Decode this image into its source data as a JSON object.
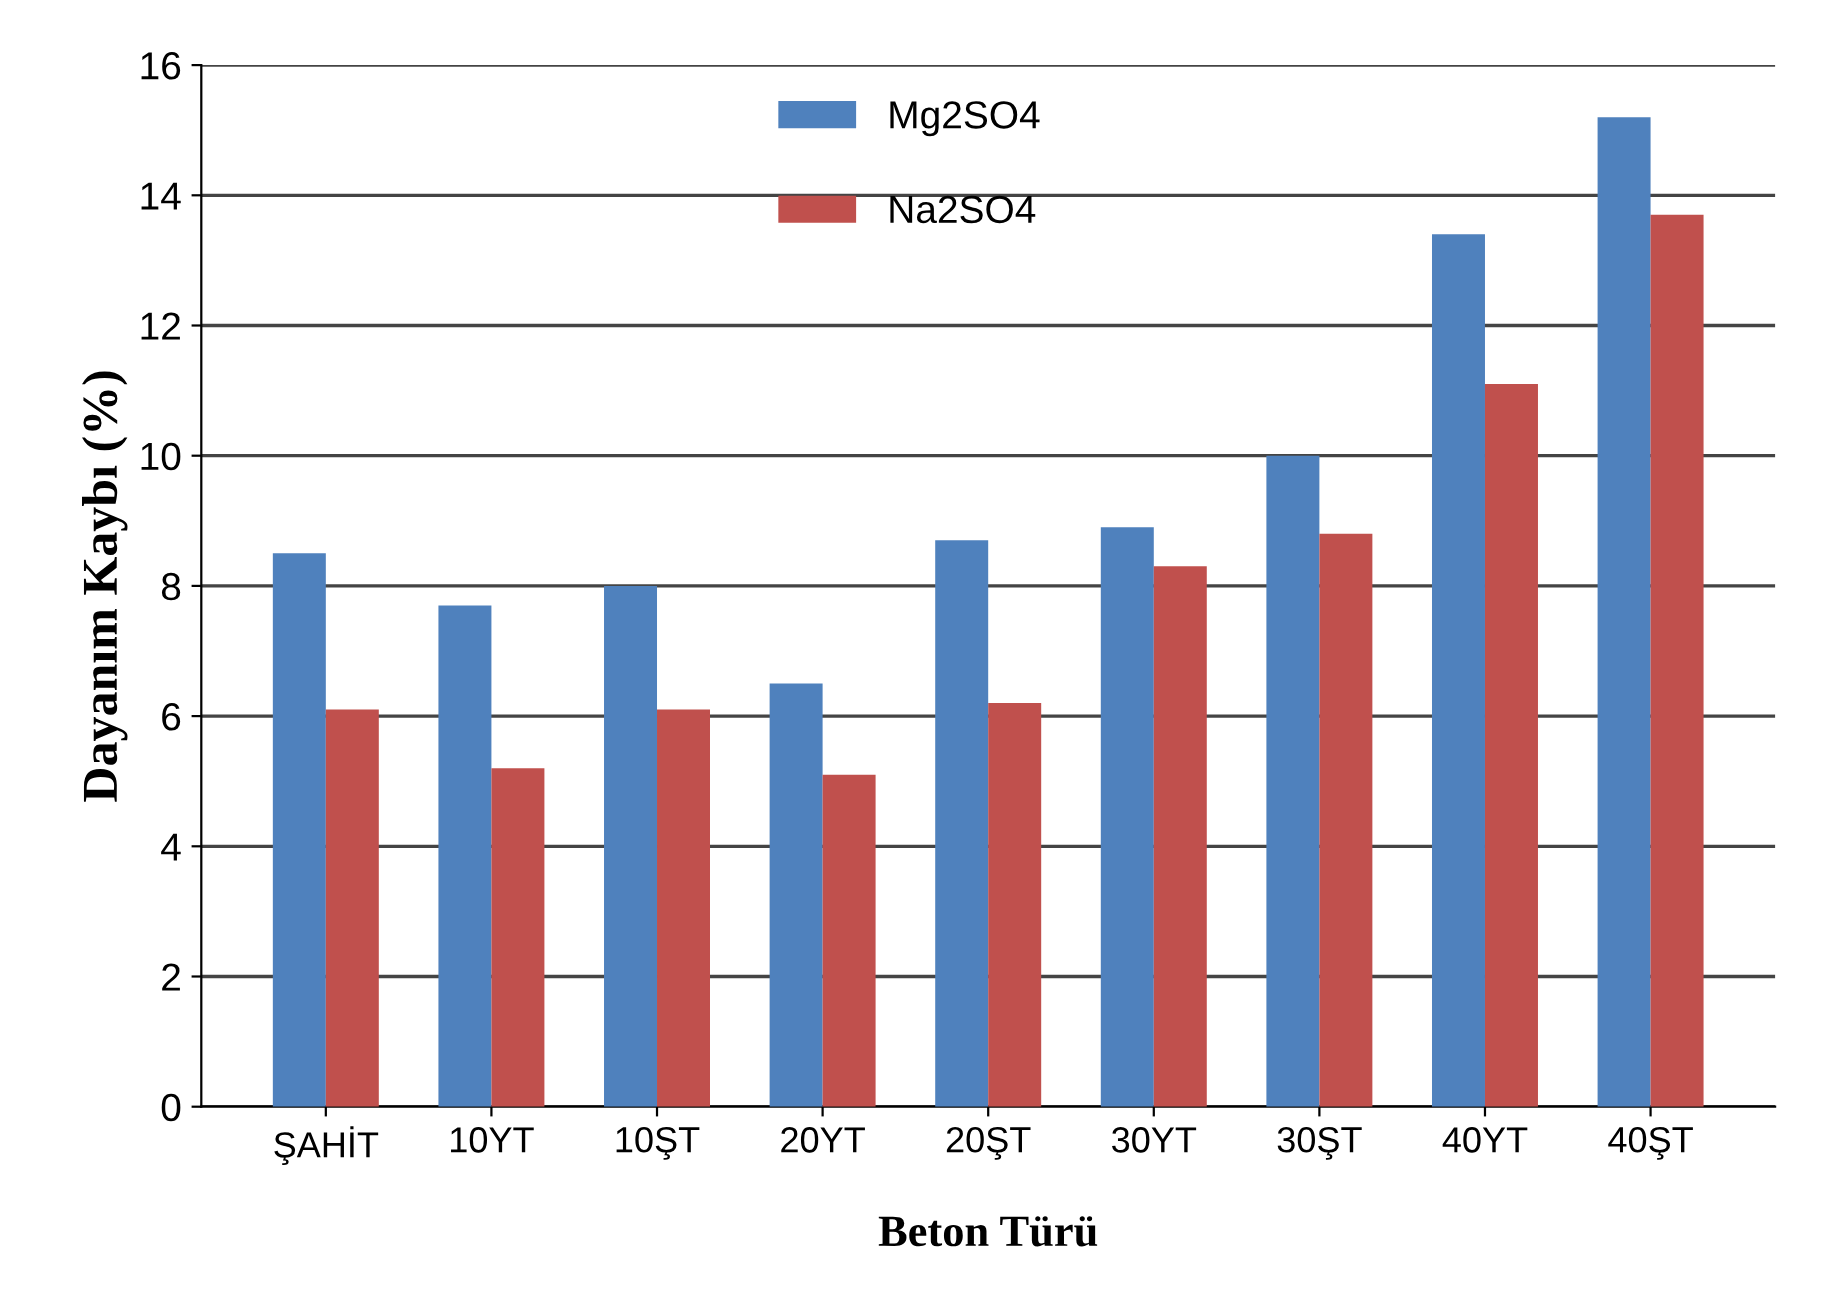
{
  "chart_data": {
    "type": "bar",
    "xlabel": "Beton Türü",
    "ylabel": "Dayanım Kaybı (%)",
    "categories": [
      "ŞAHİT",
      "10YT",
      "10ŞT",
      "20YT",
      "20ŞT",
      "30YT",
      "30ŞT",
      "40YT",
      "40ŞT"
    ],
    "series": [
      {
        "name": "Mg2SO4",
        "color": "#4f81bd",
        "values": [
          8.5,
          7.7,
          8.0,
          6.5,
          8.7,
          8.9,
          10.0,
          13.4,
          15.2
        ]
      },
      {
        "name": "Na2SO4",
        "color": "#c0504d",
        "values": [
          6.1,
          5.2,
          6.1,
          5.1,
          6.2,
          8.3,
          8.8,
          11.1,
          13.7
        ]
      }
    ],
    "ylim": [
      0,
      16
    ],
    "yticks": [
      0,
      2,
      4,
      6,
      8,
      10,
      12,
      14,
      16
    ],
    "grid": "y",
    "legend": "top"
  }
}
